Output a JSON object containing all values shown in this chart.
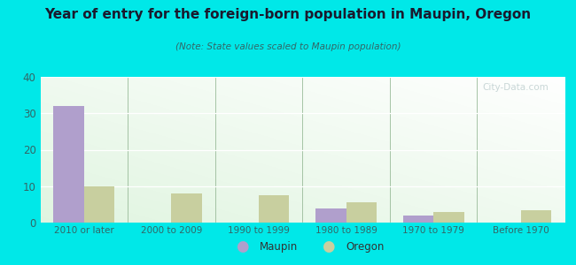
{
  "title": "Year of entry for the foreign-born population in Maupin, Oregon",
  "subtitle": "(Note: State values scaled to Maupin population)",
  "categories": [
    "2010 or later",
    "2000 to 2009",
    "1990 to 1999",
    "1980 to 1989",
    "1970 to 1979",
    "Before 1970"
  ],
  "maupin_values": [
    32,
    0,
    0,
    4,
    2,
    0
  ],
  "oregon_values": [
    10,
    8,
    7.5,
    5.5,
    3,
    3.5
  ],
  "maupin_color": "#b09fcc",
  "oregon_color": "#c8cf9f",
  "background_color": "#00e8e8",
  "ylim": [
    0,
    40
  ],
  "yticks": [
    0,
    10,
    20,
    30,
    40
  ],
  "bar_width": 0.35,
  "legend_maupin": "Maupin",
  "legend_oregon": "Oregon",
  "title_color": "#1a1a2e",
  "subtitle_color": "#336666",
  "tick_color": "#336666"
}
